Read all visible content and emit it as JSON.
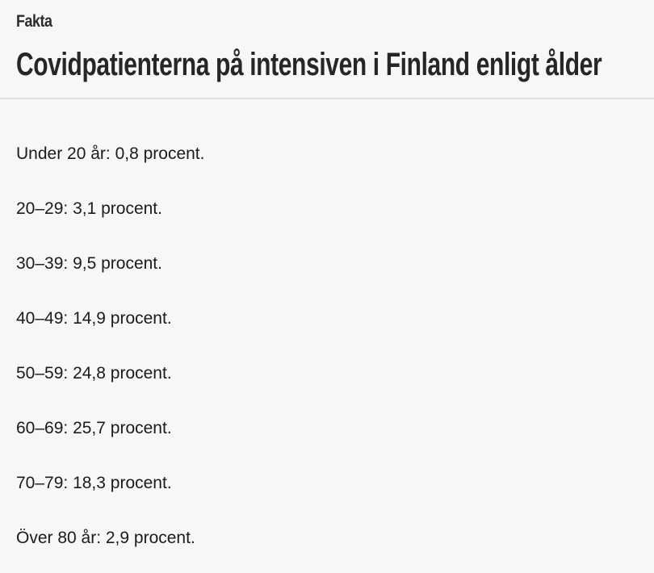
{
  "factbox": {
    "kicker": "Fakta",
    "title": "Covidpatienterna på intensiven i Finland enligt ålder",
    "items": [
      "Under 20 år: 0,8 procent.",
      "20–29: 3,1 procent.",
      "30–39: 9,5 procent.",
      "40–49: 14,9 procent.",
      "50–59: 24,8 procent.",
      "60–69: 25,7 procent.",
      "70–79: 18,3 procent.",
      "Över 80 år: 2,9 procent."
    ],
    "colors": {
      "background": "#f7f7f7",
      "heading_text": "#262626",
      "body_text": "#1b1b1b",
      "divider": "#e1e1e1"
    }
  }
}
